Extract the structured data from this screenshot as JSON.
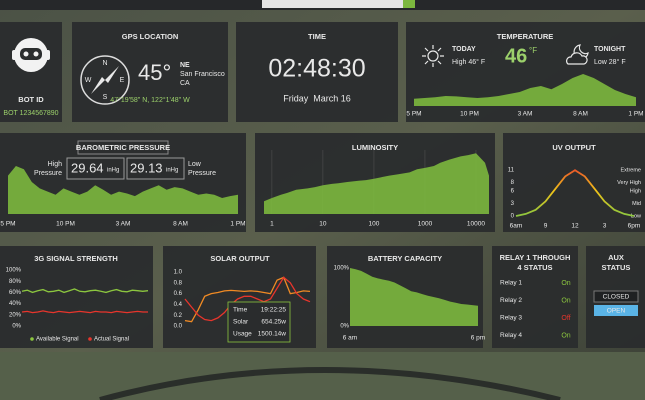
{
  "bot": {
    "title": "BOT ID",
    "id": "BOT 1234567890"
  },
  "gps": {
    "title": "GPS LOCATION",
    "heading": "45°",
    "direction": "NE",
    "city": "San Francisco",
    "state": "CA",
    "coords": "47°19'58\" N, 122°1'48\" W",
    "compass": [
      "N",
      "E",
      "S",
      "W"
    ]
  },
  "time": {
    "title": "TIME",
    "clock": "02:48:30",
    "date": "Friday  March 16"
  },
  "temperature": {
    "title": "TEMPERATURE",
    "today_label": "TODAY",
    "today": "High 46° F",
    "current": "46",
    "unit": "°F",
    "tonight_label": "TONIGHT",
    "tonight": "Low 28° F",
    "chart": {
      "type": "area",
      "color": "#7cb83e",
      "ylim": [
        0,
        100
      ],
      "xticks": [
        "5 PM",
        "10 PM",
        "3 AM",
        "8 AM",
        "1 PM"
      ],
      "values": [
        18,
        20,
        22,
        25,
        24,
        22,
        20,
        22,
        25,
        30,
        35,
        45,
        50,
        42,
        55,
        70,
        80,
        70,
        55,
        40,
        30,
        22
      ]
    }
  },
  "barometric": {
    "title": "BAROMETRIC PRESSURE",
    "high_label": [
      "High",
      "Pressure"
    ],
    "high": "29.64",
    "low": "29.13",
    "unit": "inHg",
    "low_label": [
      "Low",
      "Pressure"
    ],
    "chart": {
      "type": "area",
      "color": "#7cb83e",
      "ylim": [
        0,
        100
      ],
      "xticks": [
        "5 PM",
        "10 PM",
        "3 AM",
        "8 AM",
        "1 PM"
      ],
      "values": [
        60,
        75,
        70,
        50,
        40,
        35,
        30,
        40,
        35,
        30,
        35,
        45,
        38,
        30,
        35,
        32,
        28,
        35,
        40,
        45,
        38,
        42,
        40,
        35,
        30,
        32,
        30,
        25,
        28,
        30
      ]
    }
  },
  "luminosity": {
    "title": "LUMINOSITY",
    "chart": {
      "type": "area",
      "color": "#7cb83e",
      "log_x": true,
      "grid": true,
      "xlim": [
        0.7,
        18000
      ],
      "ylim": [
        0,
        100
      ],
      "xticks": [
        1,
        10,
        100,
        1000,
        10000
      ],
      "x": [
        0.7,
        1,
        1.5,
        2,
        3,
        5,
        7,
        10,
        15,
        20,
        30,
        50,
        70,
        100,
        150,
        200,
        300,
        500,
        700,
        1000,
        1500,
        2000,
        3000,
        5000,
        7000,
        10000,
        15000,
        18000
      ],
      "values": [
        20,
        25,
        30,
        33,
        38,
        40,
        42,
        45,
        47,
        48,
        50,
        52,
        53,
        55,
        58,
        60,
        62,
        65,
        70,
        72,
        75,
        80,
        85,
        90,
        92,
        95,
        80,
        60
      ]
    }
  },
  "uv": {
    "title": "UV OUTPUT",
    "chart": {
      "type": "line",
      "gradient": [
        "#e8452c",
        "#f0c419",
        "#8cc63f"
      ],
      "xlim": [
        6,
        18
      ],
      "ylim": [
        0,
        12
      ],
      "yticks": [
        11,
        8,
        6,
        3,
        0
      ],
      "level_ticks": [
        {
          "value": 11,
          "label": "Extreme"
        },
        {
          "value": 8,
          "label": "Very High"
        },
        {
          "value": 6,
          "label": "High"
        },
        {
          "value": 3,
          "label": "Mid"
        },
        {
          "value": 0,
          "label": "Low"
        }
      ],
      "xticks": [
        {
          "value": 6,
          "label": "6am"
        },
        9,
        12,
        {
          "value": 15,
          "label": "3"
        },
        {
          "value": 18,
          "label": "6pm"
        }
      ],
      "x": [
        6,
        7,
        8,
        9,
        10,
        11,
        12,
        13,
        14,
        15,
        16,
        17,
        18
      ],
      "values": [
        0,
        0.5,
        1.5,
        3.5,
        6.5,
        9.5,
        11,
        9.5,
        6.5,
        3.5,
        1.5,
        0.5,
        0
      ]
    }
  },
  "signal": {
    "title": "3G SIGNAL STRENGTH",
    "chart": {
      "type": "line",
      "ylim": [
        0,
        100
      ],
      "yticks": [
        {
          "value": 100,
          "label": "100%"
        },
        {
          "value": 80,
          "label": "80%"
        },
        {
          "value": 60,
          "label": "60%"
        },
        {
          "value": 40,
          "label": "40%"
        },
        {
          "value": 20,
          "label": "20%"
        },
        {
          "value": 0,
          "label": "0%"
        }
      ],
      "series": [
        {
          "name": "Available Signal",
          "color": "#8cc63f",
          "values": [
            62,
            64,
            60,
            63,
            65,
            61,
            62,
            64,
            60,
            63,
            66,
            62,
            61,
            63,
            64,
            62,
            60,
            63,
            65,
            62,
            61,
            64,
            63,
            62,
            63
          ]
        },
        {
          "name": "Actual Signal",
          "color": "#e8352c",
          "values": [
            25,
            26,
            24,
            25,
            27,
            25,
            24,
            26,
            25,
            24,
            25,
            26,
            25,
            24,
            26,
            25,
            25,
            24,
            26,
            25,
            24,
            25,
            26,
            25,
            25
          ]
        }
      ]
    }
  },
  "solar": {
    "title": "SOLAR OUTPUT",
    "tooltip": [
      [
        "Time",
        "19:22:25"
      ],
      [
        "Solar",
        "654.25w"
      ],
      [
        "Usage",
        "1500.14w"
      ]
    ],
    "chart": {
      "type": "line",
      "ylim": [
        0,
        1
      ],
      "yticks": [
        {
          "value": 1,
          "label": "1.0"
        },
        0.8,
        0.6,
        0.4,
        0.2,
        {
          "value": 0,
          "label": "0.0"
        }
      ],
      "series": [
        {
          "color": "#f08a24",
          "values": [
            0.1,
            0.08,
            0.3,
            0.55,
            0.6,
            0.62,
            0.65,
            0.66,
            0.65,
            0.64,
            0.65,
            0.64,
            0.62,
            0.6,
            0.85,
            0.9,
            0.6,
            0.62,
            0.65,
            0.64
          ]
        },
        {
          "color": "#e8352c",
          "values": [
            0.5,
            0.35,
            0.2,
            0.12,
            0.1,
            0.15,
            0.25,
            0.4,
            0.5,
            0.55,
            0.55,
            0.5,
            0.45,
            0.5,
            0.7,
            0.9,
            0.8,
            0.6,
            0.5,
            0.45
          ]
        }
      ]
    }
  },
  "battery": {
    "title": "BATTERY CAPACITY",
    "chart": {
      "type": "area",
      "color": "#7cb83e",
      "ylim": [
        0,
        100
      ],
      "yticks": [
        {
          "value": 100,
          "label": "100%"
        },
        {
          "value": 0,
          "label": "0%"
        }
      ],
      "xticks": [
        "6 am",
        "6 pm"
      ],
      "values": [
        100,
        98,
        95,
        90,
        85,
        82,
        80,
        78,
        75,
        70,
        65,
        60,
        58,
        55,
        52,
        50,
        48,
        45,
        42,
        40,
        38,
        37,
        36,
        35
      ]
    }
  },
  "relay": {
    "title": [
      "RELAY 1 THROUGH",
      "4 STATUS"
    ],
    "relays": [
      {
        "name": "Relay 1",
        "status": "On",
        "color": "#8cc63f"
      },
      {
        "name": "Relay 2",
        "status": "On",
        "color": "#8cc63f"
      },
      {
        "name": "Relay 3",
        "status": "Off",
        "color": "#e8352c"
      },
      {
        "name": "Relay 4",
        "status": "On",
        "color": "#8cc63f"
      }
    ]
  },
  "aux": {
    "title": [
      "AUX",
      "STATUS"
    ],
    "buttons": [
      "CLOSED",
      "OPEN"
    ]
  }
}
